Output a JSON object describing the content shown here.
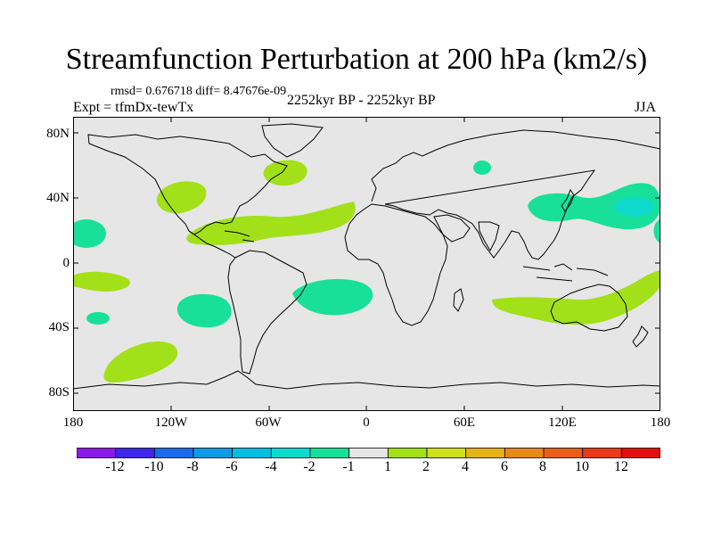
{
  "title": "Streamfunction Perturbation at 200 hPa (km2/s)",
  "stats_text": "rmsd= 0.676718  diff= 8.47676e-09",
  "period_text": "2252kyr BP - 2252kyr BP",
  "experiment_text": "Expt = tfmDx-tewTx",
  "season": "JJA",
  "lat_labels": [
    "80N",
    "40N",
    "0",
    "40S",
    "80S"
  ],
  "lon_labels": [
    "180",
    "120W",
    "60W",
    "0",
    "60E",
    "120E",
    "180"
  ],
  "map": {
    "lon_range": [
      -180,
      180
    ],
    "lat_range": [
      -90,
      90
    ],
    "background_color": "#e6e6e6",
    "coastline_color": "#000000"
  },
  "colorbar": {
    "labels": [
      "-12",
      "-10",
      "-8",
      "-6",
      "-4",
      "-2",
      "-1",
      "1",
      "2",
      "4",
      "6",
      "8",
      "10",
      "12"
    ],
    "colors": [
      "#8a1be6",
      "#3c28e6",
      "#1d6ae8",
      "#0f9ae6",
      "#06bfe0",
      "#0ed9cc",
      "#18e09a",
      "#e6e6e6",
      "#a2e01a",
      "#cde01c",
      "#e6b41a",
      "#e6891a",
      "#e6601a",
      "#e63a1a",
      "#e01010"
    ]
  },
  "anomaly_regions": [
    {
      "name": "n-pacific-west",
      "lon": -163,
      "lat": 18,
      "level": "-2 to -1",
      "color": "#18e09a"
    },
    {
      "name": "n-pacific-east",
      "lon": -112,
      "lat": 40,
      "level": "1 to 2",
      "color": "#a2e01a"
    },
    {
      "name": "atlantic-band",
      "lon": -60,
      "lat": 20,
      "level": "1 to 2",
      "color": "#a2e01a"
    },
    {
      "name": "n-atlantic",
      "lon": -50,
      "lat": 50,
      "level": "1 to 2",
      "color": "#a2e01a"
    },
    {
      "name": "siberia",
      "lon": 73,
      "lat": 60,
      "level": "-2 to -1",
      "color": "#18e09a"
    },
    {
      "name": "nw-pacific",
      "lon": 145,
      "lat": 35,
      "level": "-2 to -1",
      "color": "#18e09a"
    },
    {
      "name": "nw-pacific-core",
      "lon": 165,
      "lat": 37,
      "level": "-4 to -2",
      "color": "#0ed9cc"
    },
    {
      "name": "s-atlantic",
      "lon": -27,
      "lat": -25,
      "level": "-2 to -1",
      "color": "#18e09a"
    },
    {
      "name": "se-pacific",
      "lon": -103,
      "lat": -32,
      "level": "-2 to -1",
      "color": "#18e09a"
    },
    {
      "name": "s-pacific-west",
      "lon": -163,
      "lat": -13,
      "level": "1 to 2",
      "color": "#a2e01a"
    },
    {
      "name": "s-pacific-small",
      "lon": -164,
      "lat": -33,
      "level": "-2 to -1",
      "color": "#18e09a"
    },
    {
      "name": "south-pacific-sw",
      "lon": -135,
      "lat": -60,
      "level": "1 to 2",
      "color": "#a2e01a"
    },
    {
      "name": "indian-australia",
      "lon": 125,
      "lat": -27,
      "level": "1 to 2",
      "color": "#a2e01a"
    }
  ]
}
